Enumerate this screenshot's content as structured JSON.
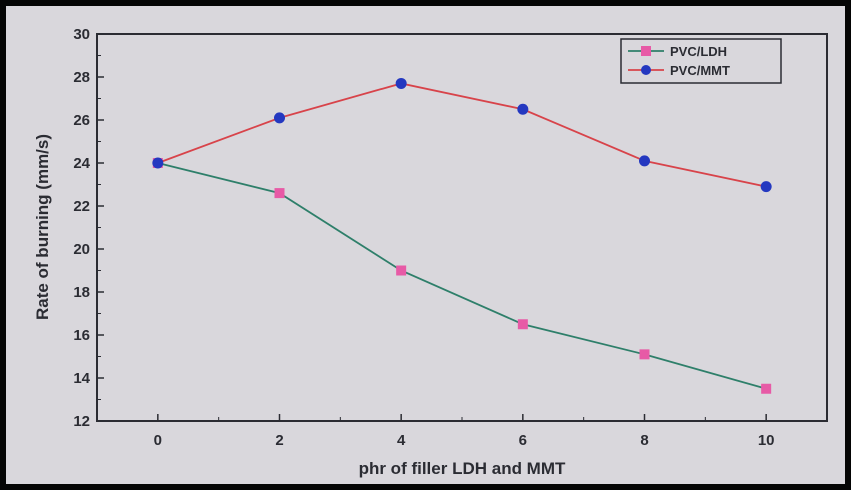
{
  "chart_data": {
    "type": "line",
    "xlabel": "phr of filler LDH and MMT",
    "ylabel": "Rate of burning (mm/s)",
    "xlim": [
      -1,
      11
    ],
    "ylim": [
      12,
      30
    ],
    "xticks": [
      0,
      2,
      4,
      6,
      8,
      10
    ],
    "yticks": [
      12,
      14,
      16,
      18,
      20,
      22,
      24,
      26,
      28,
      30
    ],
    "legend": "top-right",
    "grid": false,
    "series": [
      {
        "name": "PVC/LDH",
        "line_color": "#2e7f6a",
        "marker": "square",
        "marker_color": "#e75aa6",
        "x": [
          0,
          2,
          4,
          6,
          8,
          10
        ],
        "y": [
          24.0,
          22.6,
          19.0,
          16.5,
          15.1,
          13.5
        ]
      },
      {
        "name": "PVC/MMT",
        "line_color": "#d8434a",
        "marker": "circle",
        "marker_color": "#2438c0",
        "x": [
          0,
          2,
          4,
          6,
          8,
          10
        ],
        "y": [
          24.0,
          26.1,
          27.7,
          26.5,
          24.1,
          22.9
        ]
      }
    ]
  }
}
